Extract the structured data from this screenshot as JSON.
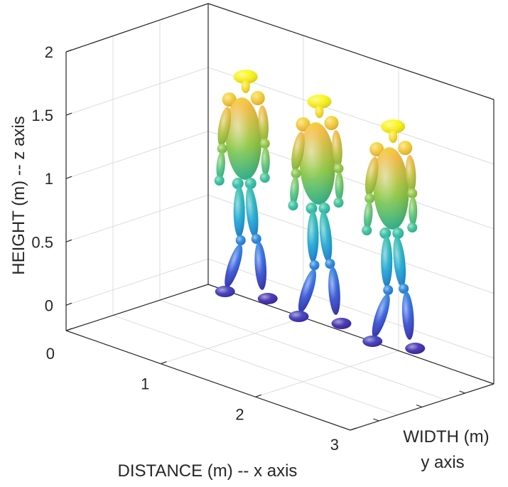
{
  "chart_data": {
    "type": "3d-surface",
    "xlabel": "DISTANCE (m) -- x axis",
    "ylabel_lines": [
      "WIDTH (m)",
      "y axis"
    ],
    "zlabel": "HEIGHT (m) -- z axis",
    "x_ticks": [
      "0",
      "1",
      "2",
      "3"
    ],
    "z_ticks": [
      "0",
      "0.5",
      "1",
      "1.5",
      "2"
    ],
    "xlim": [
      0,
      3
    ],
    "zlim": [
      -0.2,
      2
    ],
    "grid": true,
    "box": true,
    "colormap": "parula",
    "figures": [
      {
        "x": 0.75,
        "stride": "left foot forward"
      },
      {
        "x": 1.5,
        "stride": "left foot forward"
      },
      {
        "x": 2.25,
        "stride": "left foot forward"
      }
    ],
    "colors": {
      "axis": "#262626",
      "grid": "#dcdcdc",
      "low": "#3e26a8",
      "high": "#f9fb0e"
    }
  }
}
